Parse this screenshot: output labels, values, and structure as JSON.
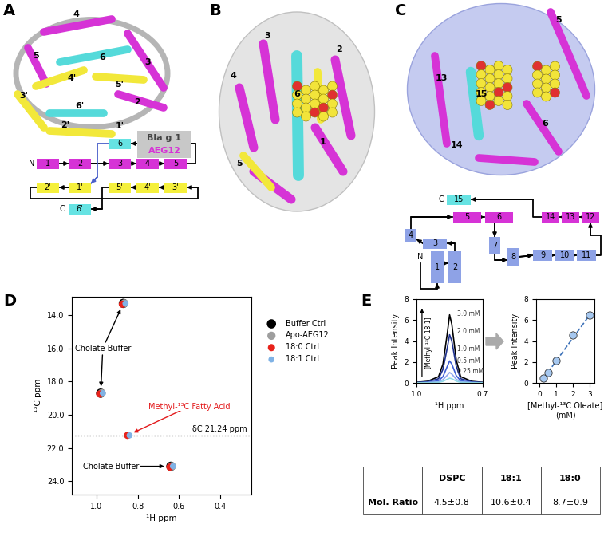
{
  "diagrams": {
    "A": {
      "panel_label": "A",
      "structure_labels": [
        "4",
        "5",
        "6",
        "3",
        "4'",
        "5'",
        "3'",
        "6'",
        "2",
        "2'",
        "1'"
      ],
      "legend": [
        {
          "label": "Bla g 1",
          "color": "#c8c8c8"
        },
        {
          "label": "AEG12",
          "color": "#d633d6"
        }
      ],
      "topology": {
        "boxes": [
          {
            "label": "1",
            "color": "#d633d6"
          },
          {
            "label": "2",
            "color": "#d633d6"
          },
          {
            "label": "3",
            "color": "#d633d6"
          },
          {
            "label": "4",
            "color": "#d633d6"
          },
          {
            "label": "5",
            "color": "#d633d6"
          },
          {
            "label": "6",
            "color": "#66e3e3"
          },
          {
            "label": "2'",
            "color": "#f5f03c"
          },
          {
            "label": "1'",
            "color": "#f5f03c"
          },
          {
            "label": "5'",
            "color": "#f5f03c"
          },
          {
            "label": "4'",
            "color": "#f5f03c"
          },
          {
            "label": "3'",
            "color": "#f5f03c"
          },
          {
            "label": "6'",
            "color": "#66e3e3"
          }
        ],
        "termini": [
          "N",
          "C"
        ]
      }
    },
    "B": {
      "panel_label": "B",
      "structure_labels": [
        "3",
        "2",
        "4",
        "6",
        "5",
        "1"
      ]
    },
    "C": {
      "panel_label": "C",
      "structure_labels": [
        "5",
        "13",
        "15",
        "6",
        "14"
      ],
      "topology": {
        "boxes": [
          {
            "label": "15",
            "color": "#66e3e3"
          },
          {
            "label": "5",
            "color": "#d633d6"
          },
          {
            "label": "6",
            "color": "#d633d6"
          },
          {
            "label": "14",
            "color": "#d633d6"
          },
          {
            "label": "13",
            "color": "#d633d6"
          },
          {
            "label": "12",
            "color": "#d633d6"
          },
          {
            "label": "4",
            "color": "#8ea2e6"
          },
          {
            "label": "3",
            "color": "#8ea2e6"
          },
          {
            "label": "1",
            "color": "#8ea2e6"
          },
          {
            "label": "2",
            "color": "#8ea2e6"
          },
          {
            "label": "7",
            "color": "#8ea2e6"
          },
          {
            "label": "8",
            "color": "#8ea2e6"
          },
          {
            "label": "9",
            "color": "#8ea2e6"
          },
          {
            "label": "10",
            "color": "#8ea2e6"
          },
          {
            "label": "11",
            "color": "#8ea2e6"
          }
        ],
        "termini": [
          "C",
          "N"
        ]
      }
    }
  },
  "chart_data": [
    {
      "panel_label": "D",
      "type": "scatter",
      "x_label": "¹H ppm",
      "y_label": "¹³C ppm",
      "xlim": [
        1.12,
        0.25
      ],
      "xticks": [
        1.0,
        0.8,
        0.6,
        0.4
      ],
      "ylim": [
        24.8,
        12.9
      ],
      "yticks": [
        14.0,
        16.0,
        18.0,
        20.0,
        22.0,
        24.0
      ],
      "legend": "upper left",
      "series": [
        {
          "name": "Buffer Ctrl",
          "color": "#000000",
          "marker": "o",
          "x": [
            0.87,
            0.98,
            0.64
          ],
          "values": [
            13.3,
            18.7,
            23.1
          ]
        },
        {
          "name": "Apo-AEG12",
          "color": "#9e9e9e",
          "marker": "o",
          "x": [
            0.865,
            0.975,
            0.635
          ],
          "values": [
            13.3,
            18.7,
            23.1
          ]
        },
        {
          "name": "18:0 Ctrl",
          "color": "#e8221a",
          "marker": "o",
          "x": [
            0.875,
            0.985,
            0.645,
            0.85
          ],
          "values": [
            13.35,
            18.75,
            23.15,
            21.24
          ]
        },
        {
          "name": "18:1 Ctrl",
          "color": "#7fb2e5",
          "marker": "o",
          "x": [
            0.86,
            0.97,
            0.63,
            0.84
          ],
          "values": [
            13.3,
            18.7,
            23.1,
            21.24
          ]
        }
      ],
      "annotations": [
        {
          "text": "Cholate Buffer",
          "color": "#000000",
          "points": [
            [
              0.87,
              13.3
            ],
            [
              0.98,
              18.7
            ]
          ]
        },
        {
          "text": "Cholate Buffer",
          "color": "#000000",
          "points": [
            [
              0.64,
              23.1
            ]
          ]
        },
        {
          "text": "Methyl-¹³C Fatty Acid",
          "color": "#e31a1c",
          "points": [
            [
              0.85,
              21.24
            ]
          ]
        }
      ],
      "reference_line": {
        "y": 21.24,
        "label": "δC 21.24 ppm"
      }
    },
    {
      "panel_label": "E",
      "type": "line",
      "x_label": "¹H ppm",
      "y_label": "Peak Intensity",
      "xlim": [
        1.0,
        0.7
      ],
      "xticks": [
        1.0,
        0.7
      ],
      "ylim": [
        0,
        8
      ],
      "yticks": [
        0,
        2,
        4,
        6,
        8
      ],
      "annotations": [
        {
          "text": "[Methyl-¹³C-18:1]"
        }
      ],
      "series": [
        {
          "name": "3.0 mM",
          "color": "#000000",
          "x": [
            1.0,
            0.95,
            0.9,
            0.88,
            0.86,
            0.85,
            0.84,
            0.82,
            0.8,
            0.75,
            0.7
          ],
          "values": [
            0.05,
            0.15,
            0.6,
            1.8,
            4.8,
            6.5,
            5.6,
            2.2,
            0.6,
            0.15,
            0.05
          ]
        },
        {
          "name": "2.0 mM",
          "color": "#1c2f8c",
          "x": [
            1.0,
            0.95,
            0.9,
            0.88,
            0.86,
            0.85,
            0.84,
            0.82,
            0.8,
            0.75,
            0.7
          ],
          "values": [
            0.03,
            0.1,
            0.4,
            1.3,
            3.4,
            4.6,
            4.0,
            1.6,
            0.4,
            0.1,
            0.03
          ]
        },
        {
          "name": "1.0 mM",
          "color": "#3d5fd6",
          "x": [
            1.0,
            0.95,
            0.9,
            0.88,
            0.86,
            0.85,
            0.84,
            0.82,
            0.8,
            0.75,
            0.7
          ],
          "values": [
            0.02,
            0.05,
            0.2,
            0.6,
            1.6,
            2.1,
            1.8,
            0.7,
            0.2,
            0.05,
            0.02
          ]
        },
        {
          "name": "0.5 mM",
          "color": "#8fa6f0",
          "x": [
            1.0,
            0.95,
            0.9,
            0.88,
            0.86,
            0.85,
            0.84,
            0.82,
            0.8,
            0.75,
            0.7
          ],
          "values": [
            0.01,
            0.03,
            0.1,
            0.3,
            0.75,
            1.0,
            0.85,
            0.35,
            0.1,
            0.03,
            0.01
          ]
        },
        {
          "name": "0.25 mM",
          "color": "#8ed8e8",
          "x": [
            1.0,
            0.95,
            0.9,
            0.88,
            0.86,
            0.85,
            0.84,
            0.82,
            0.8,
            0.75,
            0.7
          ],
          "values": [
            0.01,
            0.02,
            0.05,
            0.15,
            0.35,
            0.45,
            0.4,
            0.17,
            0.05,
            0.02,
            0.01
          ]
        }
      ]
    },
    {
      "type": "scatter",
      "x_label": "[Methyl-¹³C Oleate]\n(mM)",
      "y_label": "Peak Intensity",
      "xlim": [
        -0.2,
        3.3
      ],
      "xticks": [
        0,
        1,
        2,
        3
      ],
      "ylim": [
        0,
        8
      ],
      "yticks": [
        0,
        2,
        4,
        6,
        8
      ],
      "series": [
        {
          "type": "line",
          "color": "#3a6fb7",
          "line_style": "dashed",
          "x": [
            0.25,
            3.0
          ],
          "values": [
            0.45,
            6.45
          ]
        },
        {
          "type": "scatter",
          "color": "#a6c8f0",
          "marker": "o",
          "x": [
            0.25,
            0.5,
            1.0,
            2.0,
            3.0
          ],
          "values": [
            0.45,
            1.0,
            2.1,
            4.6,
            6.45
          ]
        }
      ]
    }
  ],
  "table": {
    "columns": [
      "DSPC",
      "18:1",
      "18:0"
    ],
    "rows": [
      {
        "label": "Mol. Ratio",
        "cells": [
          "4.5±0.8",
          "10.6±0.4",
          "8.7±0.9"
        ]
      }
    ]
  }
}
